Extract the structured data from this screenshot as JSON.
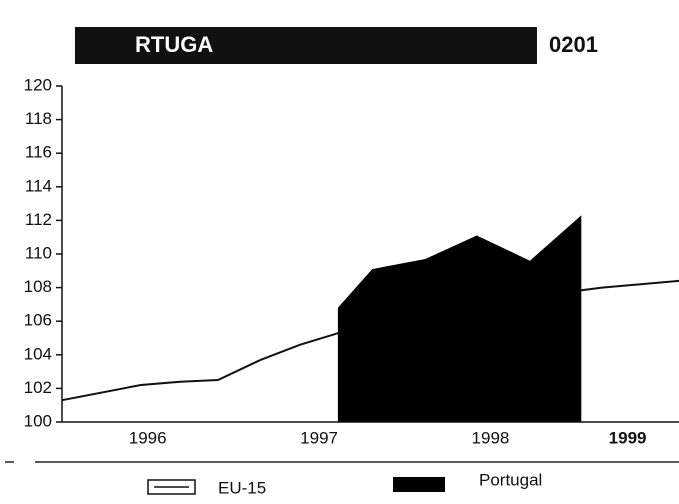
{
  "chart_data": {
    "type": "line",
    "title": "RTUGA",
    "code": "0201",
    "xlim": [
      1996,
      1999.6
    ],
    "xticks": [
      {
        "value": 1996.5,
        "label": "1996"
      },
      {
        "value": 1997.5,
        "label": "1997"
      },
      {
        "value": 1998.5,
        "label": "1998"
      },
      {
        "value": 1999.3,
        "label": "1999"
      }
    ],
    "ylim": [
      100,
      120
    ],
    "yticks": [
      100,
      102,
      104,
      106,
      108,
      110,
      112,
      114,
      116,
      118,
      120
    ],
    "series": [
      {
        "name": "EU-15",
        "type": "line",
        "color": "#111111",
        "x": [
          1996.0,
          1996.46,
          1996.69,
          1996.91,
          1997.16,
          1997.39,
          1997.68,
          1997.98,
          1998.27,
          1998.56,
          1998.85,
          1999.15,
          1999.6
        ],
        "values": [
          101.3,
          102.2,
          102.4,
          102.5,
          103.7,
          104.6,
          105.5,
          106.2,
          106.6,
          107.2,
          107.6,
          108.0,
          108.4
        ]
      },
      {
        "name": "Portugal",
        "type": "area",
        "color": "#000000",
        "x": [
          1997.61,
          1997.81,
          1998.12,
          1998.42,
          1998.73,
          1999.03
        ],
        "values": [
          106.8,
          109.1,
          109.7,
          111.1,
          109.6,
          112.3
        ]
      }
    ]
  }
}
